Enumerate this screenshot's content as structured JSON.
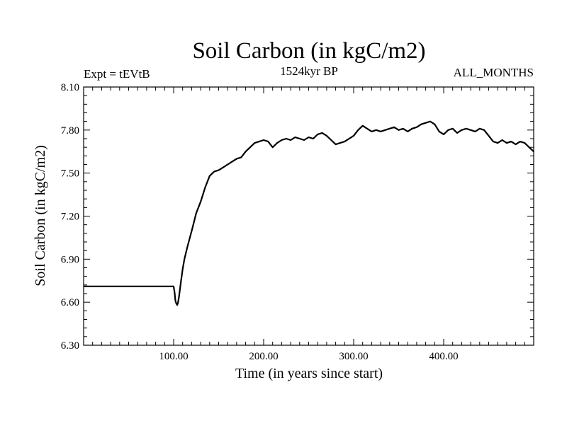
{
  "chart_data": {
    "type": "line",
    "title": "Soil Carbon (in kgC/m2)",
    "subtitle_left": "Expt = tEVtB",
    "subtitle_center": "1524kyr BP",
    "subtitle_right": "ALL_MONTHS",
    "xlabel": "Time (in years since start)",
    "ylabel": "Soil Carbon (in kgC/m2)",
    "xlim": [
      0,
      500
    ],
    "ylim": [
      6.3,
      8.1
    ],
    "x_ticks": [
      100,
      200,
      300,
      400
    ],
    "x_tick_labels": [
      "100.00",
      "200.00",
      "300.00",
      "400.00"
    ],
    "y_ticks": [
      6.3,
      6.6,
      6.9,
      7.2,
      7.5,
      7.8,
      8.1
    ],
    "y_tick_labels": [
      "6.30",
      "6.60",
      "6.90",
      "7.20",
      "7.50",
      "7.80",
      "8.10"
    ],
    "grid": false,
    "line_color": "#000000",
    "series": [
      {
        "name": "Soil Carbon",
        "x": [
          0,
          20,
          40,
          60,
          80,
          100,
          101,
          102,
          103,
          104,
          105,
          106,
          108,
          110,
          112,
          115,
          118,
          121,
          125,
          130,
          135,
          140,
          145,
          150,
          155,
          160,
          165,
          170,
          175,
          180,
          185,
          190,
          195,
          200,
          205,
          210,
          215,
          220,
          225,
          230,
          235,
          240,
          245,
          250,
          255,
          260,
          265,
          270,
          275,
          280,
          285,
          290,
          295,
          300,
          305,
          310,
          315,
          320,
          325,
          330,
          335,
          340,
          345,
          350,
          355,
          360,
          365,
          370,
          375,
          380,
          385,
          390,
          395,
          400,
          405,
          410,
          415,
          420,
          425,
          430,
          435,
          440,
          445,
          450,
          455,
          460,
          465,
          470,
          475,
          480,
          485,
          490,
          495,
          500
        ],
        "values": [
          6.71,
          6.71,
          6.71,
          6.71,
          6.71,
          6.71,
          6.67,
          6.61,
          6.59,
          6.58,
          6.6,
          6.64,
          6.74,
          6.83,
          6.9,
          6.98,
          7.05,
          7.12,
          7.22,
          7.3,
          7.4,
          7.48,
          7.51,
          7.52,
          7.54,
          7.56,
          7.58,
          7.6,
          7.61,
          7.65,
          7.68,
          7.71,
          7.72,
          7.73,
          7.72,
          7.68,
          7.71,
          7.73,
          7.74,
          7.73,
          7.75,
          7.74,
          7.73,
          7.75,
          7.74,
          7.77,
          7.78,
          7.76,
          7.73,
          7.7,
          7.71,
          7.72,
          7.74,
          7.76,
          7.8,
          7.83,
          7.81,
          7.79,
          7.8,
          7.79,
          7.8,
          7.81,
          7.82,
          7.8,
          7.81,
          7.79,
          7.81,
          7.82,
          7.84,
          7.85,
          7.86,
          7.84,
          7.79,
          7.77,
          7.8,
          7.81,
          7.78,
          7.8,
          7.81,
          7.8,
          7.79,
          7.81,
          7.8,
          7.76,
          7.72,
          7.71,
          7.73,
          7.71,
          7.72,
          7.7,
          7.72,
          7.71,
          7.68,
          7.65
        ]
      }
    ]
  }
}
